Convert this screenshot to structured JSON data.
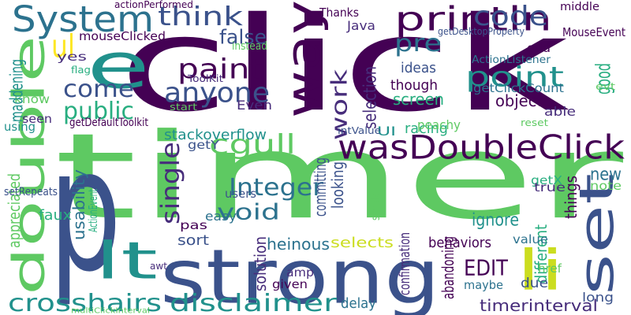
{
  "words": [
    {
      "text": "click",
      "color": "#440154"
    },
    {
      "text": "timer",
      "color": "#5ec962"
    },
    {
      "text": "p",
      "color": "#3b528b"
    },
    {
      "text": "strong",
      "color": "#3b528b"
    },
    {
      "text": "double",
      "color": "#5ec962"
    },
    {
      "text": "e",
      "color": "#21918c"
    },
    {
      "text": "way",
      "color": "#440154"
    },
    {
      "text": "set",
      "color": "#3b528b"
    },
    {
      "text": "li",
      "color": "#cbdd1f"
    },
    {
      "text": "lt",
      "color": "#21918c"
    },
    {
      "text": "System",
      "color": "#2c728e"
    },
    {
      "text": "wasDoubleClick",
      "color": "#440154"
    },
    {
      "text": "println",
      "color": "#440154"
    },
    {
      "text": "crosshairs",
      "color": "#21918c"
    },
    {
      "text": "disclaimer",
      "color": "#21918c"
    },
    {
      "text": "anyone",
      "color": "#3b528b"
    },
    {
      "text": "point",
      "color": "#21918c"
    },
    {
      "text": "paint",
      "color": "#440154"
    },
    {
      "text": "think",
      "color": "#3b528b"
    },
    {
      "text": "cgull",
      "color": "#5ec962"
    },
    {
      "text": "single",
      "color": "#472d7b"
    },
    {
      "text": "code",
      "color": "#3b528b"
    },
    {
      "text": "pre",
      "color": "#2c728e"
    },
    {
      "text": "come",
      "color": "#3b528b"
    },
    {
      "text": "public",
      "color": "#28ae80"
    },
    {
      "text": "work",
      "color": "#472d7b"
    },
    {
      "text": "void",
      "color": "#2c728e"
    },
    {
      "text": "Integer",
      "color": "#2c728e"
    },
    {
      "text": "EDIT",
      "color": "#440154"
    },
    {
      "text": "ul",
      "color": "#fde725"
    },
    {
      "text": "false",
      "color": "#3b528b"
    },
    {
      "text": "new",
      "color": "#2c728e"
    },
    {
      "text": "timerinterval",
      "color": "#472d7b"
    },
    {
      "text": "heinous",
      "color": "#2c728e"
    },
    {
      "text": "selects",
      "color": "#cbdd1f"
    },
    {
      "text": "sort",
      "color": "#3b528b"
    },
    {
      "text": "behaviors",
      "color": "#440154"
    },
    {
      "text": "ignore",
      "color": "#21918c"
    },
    {
      "text": "screen",
      "color": "#28ae80"
    },
    {
      "text": "object",
      "color": "#440154"
    },
    {
      "text": "racing",
      "color": "#28ae80"
    },
    {
      "text": "though",
      "color": "#440154"
    },
    {
      "text": "ideas",
      "color": "#3b528b"
    },
    {
      "text": "Java",
      "color": "#472d7b"
    },
    {
      "text": "Thanks",
      "color": "#440154"
    },
    {
      "text": "stackoverflow",
      "color": "#21918c"
    },
    {
      "text": "mouseClicked",
      "color": "#440154"
    },
    {
      "text": "yes",
      "color": "#472d7b"
    },
    {
      "text": "know",
      "color": "#5ec962"
    },
    {
      "text": "seen",
      "color": "#472d7b"
    },
    {
      "text": "using",
      "color": "#21918c"
    },
    {
      "text": "maddening",
      "color": "#21918c"
    },
    {
      "text": "instead",
      "color": "#5ec962"
    },
    {
      "text": "Even",
      "color": "#472d7b"
    },
    {
      "text": "selection",
      "color": "#472d7b"
    },
    {
      "text": "getClickCount",
      "color": "#2c728e"
    },
    {
      "text": "MouseEvent",
      "color": "#440154"
    },
    {
      "text": "middle",
      "color": "#440154"
    },
    {
      "text": "odd",
      "color": "#440154"
    },
    {
      "text": "good",
      "color": "#28ae80"
    },
    {
      "text": "able",
      "color": "#472d7b"
    },
    {
      "text": "peachy",
      "color": "#5ec962"
    },
    {
      "text": "UI",
      "color": "#21918c"
    },
    {
      "text": "getY",
      "color": "#3b528b"
    },
    {
      "text": "getX",
      "color": "#28ae80"
    },
    {
      "text": "note",
      "color": "#5ec962"
    },
    {
      "text": "true",
      "color": "#472d7b"
    },
    {
      "text": "things",
      "color": "#440154"
    },
    {
      "text": "different",
      "color": "#28ae80"
    },
    {
      "text": "value",
      "color": "#2c728e"
    },
    {
      "text": "maybe",
      "color": "#2c728e"
    },
    {
      "text": "due",
      "color": "#3b528b"
    },
    {
      "text": "href",
      "color": "#5ec962"
    },
    {
      "text": "long",
      "color": "#3b528b"
    },
    {
      "text": "abandoning",
      "color": "#440154"
    },
    {
      "text": "confirmation",
      "color": "#472d7b"
    },
    {
      "text": "delay",
      "color": "#2c728e"
    },
    {
      "text": "given",
      "color": "#440154"
    },
    {
      "text": "amp",
      "color": "#472d7b"
    },
    {
      "text": "solution",
      "color": "#472d7b"
    },
    {
      "text": "looking",
      "color": "#3b528b"
    },
    {
      "text": "committing",
      "color": "#3b528b"
    },
    {
      "text": "users",
      "color": "#3b528b"
    },
    {
      "text": "easy",
      "color": "#2c728e"
    },
    {
      "text": "pas",
      "color": "#440154"
    },
    {
      "text": "faux",
      "color": "#28ae80"
    },
    {
      "text": "usability",
      "color": "#2c728e"
    },
    {
      "text": "appreciated",
      "color": "#5ec962"
    },
    {
      "text": "setRepeats",
      "color": "#3b528b"
    },
    {
      "text": "getDefaultToolkit",
      "color": "#440154"
    },
    {
      "text": "ToolKit",
      "color": "#472d7b"
    },
    {
      "text": "flag",
      "color": "#28ae80"
    },
    {
      "text": "start",
      "color": "#5ec962"
    },
    {
      "text": "awt",
      "color": "#472d7b"
    },
    {
      "text": "ActionEvent",
      "color": "#28ae80"
    },
    {
      "text": "multiClickInterval",
      "color": "#5ec962"
    },
    {
      "text": "intValue",
      "color": "#3b528b"
    },
    {
      "text": "reset",
      "color": "#5ec962"
    },
    {
      "text": "evt",
      "color": "#5ec962"
    },
    {
      "text": "simple",
      "color": "#5ec962"
    },
    {
      "text": "actionPerformed",
      "color": "#440154"
    },
    {
      "text": "getDesktopProperty",
      "color": "#3b528b"
    },
    {
      "text": "ActionListener",
      "color": "#2c728e"
    }
  ]
}
